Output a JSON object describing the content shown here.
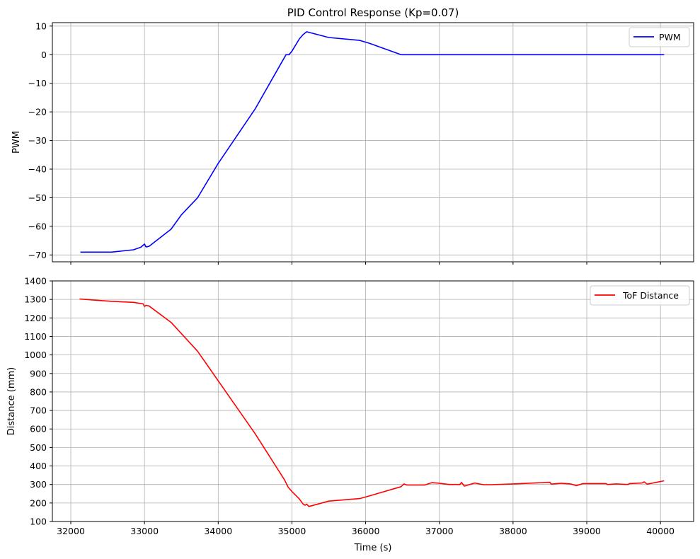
{
  "chart_data": [
    {
      "type": "line",
      "title": "PID Control Response (Kp=0.07)",
      "xlabel": "",
      "ylabel": "PWM",
      "xlim": [
        31750,
        40450
      ],
      "ylim": [
        -72.4,
        11.2
      ],
      "x_ticks": [
        32000,
        33000,
        34000,
        35000,
        36000,
        37000,
        38000,
        39000,
        40000
      ],
      "x_tick_labels_visible": false,
      "y_ticks": [
        -70,
        -60,
        -50,
        -40,
        -30,
        -20,
        -10,
        0,
        10
      ],
      "grid": true,
      "legend": "top-right",
      "series": [
        {
          "name": "PWM",
          "color": "#0000ff",
          "points": [
            [
              32130,
              -69
            ],
            [
              32550,
              -69
            ],
            [
              32850,
              -68.2
            ],
            [
              32950,
              -67.3
            ],
            [
              33000,
              -66.2
            ],
            [
              33020,
              -67.2
            ],
            [
              33060,
              -67
            ],
            [
              33360,
              -61
            ],
            [
              33500,
              -56
            ],
            [
              33720,
              -50
            ],
            [
              34000,
              -38
            ],
            [
              34500,
              -19
            ],
            [
              34920,
              0
            ],
            [
              34960,
              0
            ],
            [
              35000,
              1.2
            ],
            [
              35100,
              5.5
            ],
            [
              35150,
              7
            ],
            [
              35200,
              8
            ],
            [
              35500,
              6
            ],
            [
              35920,
              5
            ],
            [
              36050,
              4
            ],
            [
              36480,
              0
            ],
            [
              40050,
              0
            ]
          ]
        }
      ]
    },
    {
      "type": "line",
      "title": "",
      "xlabel": "Time (s)",
      "ylabel": "Distance (mm)",
      "xlim": [
        31750,
        40450
      ],
      "ylim": [
        100,
        1400
      ],
      "x_ticks": [
        32000,
        33000,
        34000,
        35000,
        36000,
        37000,
        38000,
        39000,
        40000
      ],
      "x_tick_labels": [
        "32000",
        "33000",
        "34000",
        "35000",
        "36000",
        "37000",
        "38000",
        "39000",
        "40000"
      ],
      "y_ticks": [
        100,
        200,
        300,
        400,
        500,
        600,
        700,
        800,
        900,
        1000,
        1100,
        1200,
        1300,
        1400
      ],
      "grid": true,
      "legend": "top-right",
      "series": [
        {
          "name": "ToF Distance",
          "color": "#ff0000",
          "points": [
            [
              32120,
              1302
            ],
            [
              32550,
              1290
            ],
            [
              32850,
              1284
            ],
            [
              32980,
              1276
            ],
            [
              33000,
              1262
            ],
            [
              33020,
              1268
            ],
            [
              33060,
              1265
            ],
            [
              33360,
              1176
            ],
            [
              33720,
              1020
            ],
            [
              34000,
              860
            ],
            [
              34500,
              575
            ],
            [
              34900,
              325
            ],
            [
              34950,
              285
            ],
            [
              35000,
              262
            ],
            [
              35100,
              222
            ],
            [
              35150,
              195
            ],
            [
              35180,
              188
            ],
            [
              35200,
              194
            ],
            [
              35230,
              181
            ],
            [
              35500,
              210
            ],
            [
              35920,
              224
            ],
            [
              36050,
              238
            ],
            [
              36480,
              288
            ],
            [
              36520,
              303
            ],
            [
              36560,
              297
            ],
            [
              36800,
              297
            ],
            [
              36900,
              310
            ],
            [
              37000,
              307
            ],
            [
              37130,
              300
            ],
            [
              37280,
              300
            ],
            [
              37300,
              311
            ],
            [
              37340,
              291
            ],
            [
              37480,
              308
            ],
            [
              37600,
              299
            ],
            [
              37700,
              299
            ],
            [
              38000,
              303
            ],
            [
              38500,
              312
            ],
            [
              38520,
              302
            ],
            [
              38650,
              307
            ],
            [
              38780,
              303
            ],
            [
              38860,
              294
            ],
            [
              38950,
              305
            ],
            [
              39260,
              305
            ],
            [
              39280,
              300
            ],
            [
              39400,
              303
            ],
            [
              39560,
              300
            ],
            [
              39580,
              305
            ],
            [
              39750,
              308
            ],
            [
              39780,
              314
            ],
            [
              39820,
              302
            ],
            [
              40050,
              320
            ]
          ]
        }
      ]
    }
  ]
}
